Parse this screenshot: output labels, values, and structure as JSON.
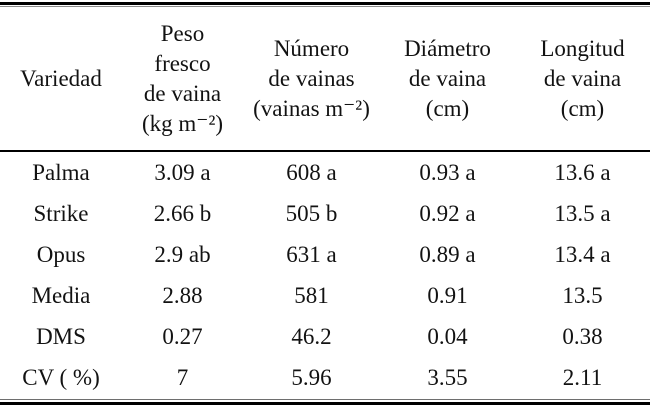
{
  "table": {
    "headers": [
      "Variedad",
      "Peso\nfresco\nde vaina\n(kg m⁻²)",
      "Número\nde vainas\n(vainas m⁻²)",
      "Diámetro\nde vaina\n(cm)",
      "Longitud\nde vaina\n(cm)"
    ],
    "rows": [
      [
        "Palma",
        "3.09 a",
        "608 a",
        "0.93 a",
        "13.6 a"
      ],
      [
        "Strike",
        "2.66 b",
        "505 b",
        "0.92 a",
        "13.5 a"
      ],
      [
        "Opus",
        "2.9 ab",
        "631 a",
        "0.89 a",
        "13.4 a"
      ],
      [
        "Media",
        "2.88",
        "581",
        "0.91",
        "13.5"
      ],
      [
        "DMS",
        "0.27",
        "46.2",
        "0.04",
        "0.38"
      ],
      [
        "CV ( %)",
        "7",
        "5.96",
        "3.55",
        "2.11"
      ]
    ]
  },
  "chart_data": {
    "type": "table",
    "columns": [
      "Variedad",
      "Peso fresco de vaina (kg m⁻²)",
      "Número de vainas (vainas m⁻²)",
      "Diámetro de vaina (cm)",
      "Longitud de vaina (cm)"
    ],
    "rows": [
      [
        "Palma",
        "3.09 a",
        "608 a",
        "0.93 a",
        "13.6 a"
      ],
      [
        "Strike",
        "2.66 b",
        "505 b",
        "0.92 a",
        "13.5 a"
      ],
      [
        "Opus",
        "2.9 ab",
        "631 a",
        "0.89 a",
        "13.4 a"
      ],
      [
        "Media",
        "2.88",
        "581",
        "0.91",
        "13.5"
      ],
      [
        "DMS",
        "0.27",
        "46.2",
        "0.04",
        "0.38"
      ],
      [
        "CV ( %)",
        "7",
        "5.96",
        "3.55",
        "2.11"
      ]
    ],
    "colors": {
      "text": "#121212",
      "rule": "#000000",
      "background": "#ffffff"
    }
  }
}
